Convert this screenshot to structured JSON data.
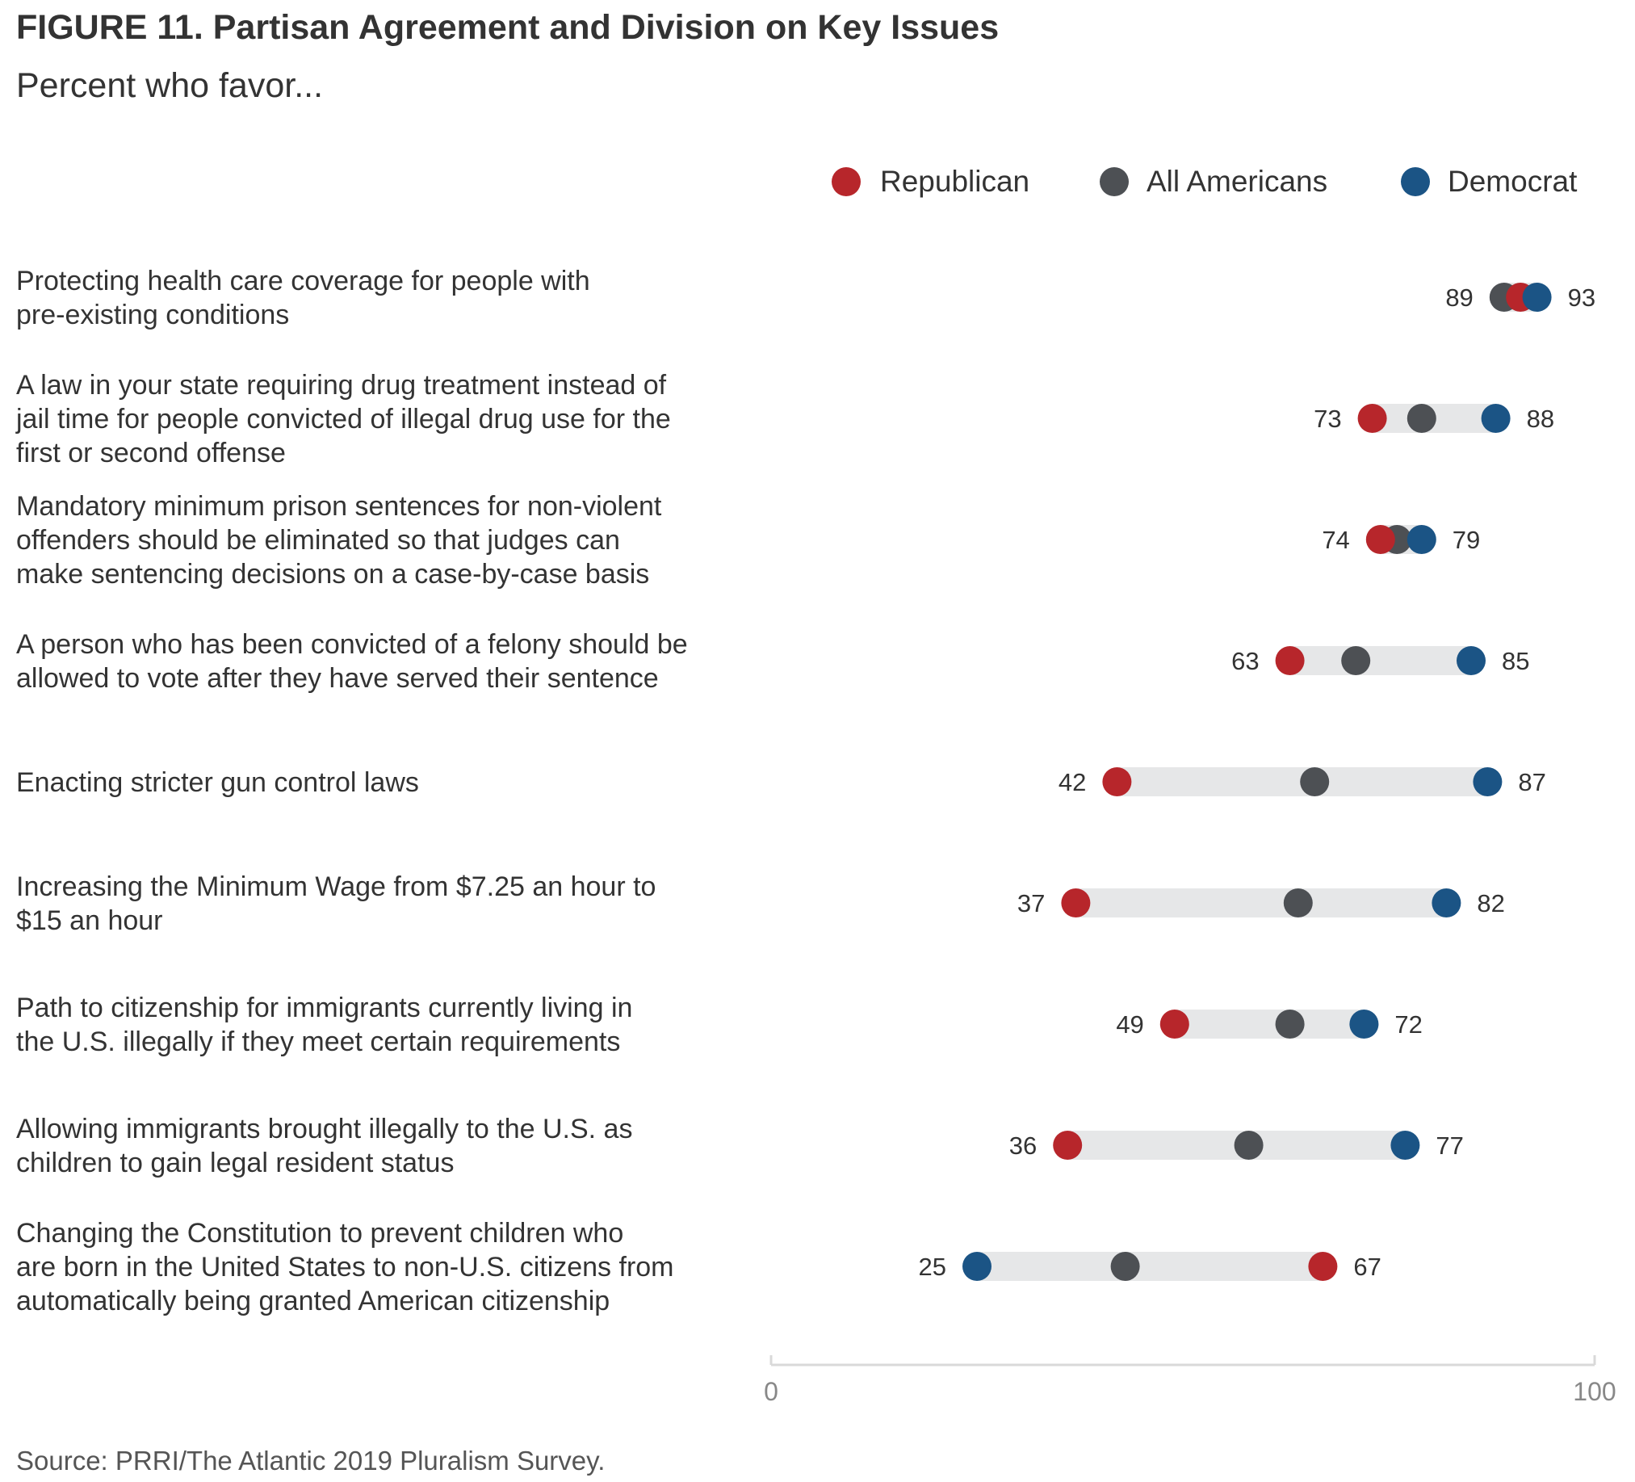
{
  "title": "FIGURE 11. Partisan Agreement and Division on Key Issues",
  "subtitle": "Percent who favor...",
  "source": "Source: PRRI/The Atlantic 2019 Pluralism Survey.",
  "colors": {
    "republican": "#b7262b",
    "all": "#4d5054",
    "democrat": "#1b5485",
    "range_bar": "#e6e7e8",
    "axis": "#d9d9d9"
  },
  "chart_data": {
    "type": "dot-range",
    "title": "FIGURE 11. Partisan Agreement and Division on Key Issues",
    "subtitle": "Percent who favor...",
    "xlim": [
      0,
      100
    ],
    "xticks": [
      "0",
      "100"
    ],
    "legend": [
      {
        "key": "republican",
        "label": "Republican"
      },
      {
        "key": "all",
        "label": "All Americans"
      },
      {
        "key": "democrat",
        "label": "Democrat"
      }
    ],
    "rows": [
      {
        "label": [
          "Protecting health care coverage for people with",
          "pre-existing conditions"
        ],
        "republican": 91,
        "all": 89,
        "democrat": 93,
        "min_label": "89",
        "max_label": "93"
      },
      {
        "label": [
          "A law in your state requiring drug treatment instead of",
          "jail time for people convicted of illegal drug use for the",
          "first or second offense"
        ],
        "republican": 73,
        "all": 79,
        "democrat": 88,
        "min_label": "73",
        "max_label": "88"
      },
      {
        "label": [
          "Mandatory minimum prison sentences for non-violent",
          "offenders should be eliminated so that judges can",
          "make sentencing decisions on a case-by-case basis"
        ],
        "republican": 74,
        "all": 76,
        "democrat": 79,
        "min_label": "74",
        "max_label": "79"
      },
      {
        "label": [
          "A person who has been convicted of a felony should be",
          "allowed to vote after they have served their sentence"
        ],
        "republican": 63,
        "all": 71,
        "democrat": 85,
        "min_label": "63",
        "max_label": "85"
      },
      {
        "label": [
          "Enacting stricter gun control laws"
        ],
        "republican": 42,
        "all": 66,
        "democrat": 87,
        "min_label": "42",
        "max_label": "87"
      },
      {
        "label": [
          "Increasing the Minimum Wage from $7.25 an hour to",
          "$15 an hour"
        ],
        "republican": 37,
        "all": 64,
        "democrat": 82,
        "min_label": "37",
        "max_label": "82"
      },
      {
        "label": [
          "Path to citizenship for immigrants currently living in",
          "the U.S. illegally if they meet certain requirements"
        ],
        "republican": 49,
        "all": 63,
        "democrat": 72,
        "min_label": "49",
        "max_label": "72"
      },
      {
        "label": [
          "Allowing immigrants brought illegally to the U.S. as",
          "children to gain legal resident status"
        ],
        "republican": 36,
        "all": 58,
        "democrat": 77,
        "min_label": "36",
        "max_label": "77"
      },
      {
        "label": [
          "Changing the Constitution to prevent children who",
          "are born in the United States to non-U.S. citizens from",
          "automatically being granted American citizenship"
        ],
        "republican": 67,
        "all": 43,
        "democrat": 25,
        "min_label": "25",
        "max_label": "67"
      }
    ]
  }
}
